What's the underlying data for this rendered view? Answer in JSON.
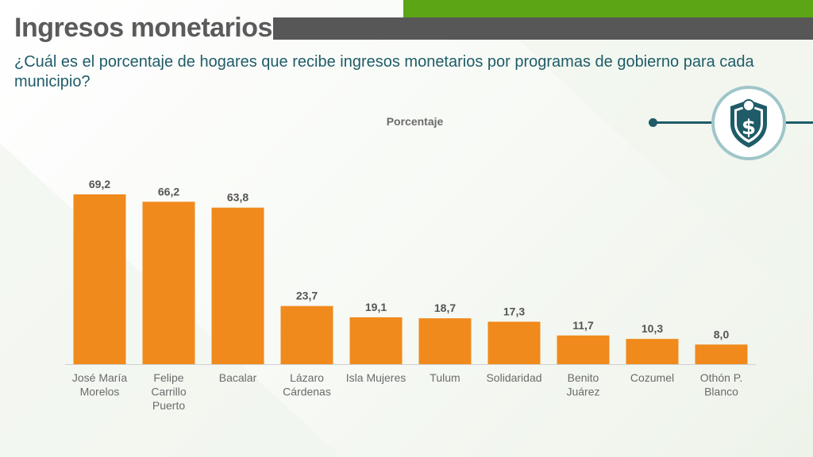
{
  "header": {
    "title": "Ingresos monetarios",
    "subtitle": "¿Cuál es el porcentaje de hogares que recibe ingresos monetarios por programas de gobierno para cada municipio?"
  },
  "badge": {
    "icon": "dollar-shield-icon",
    "color": "#1f5c68"
  },
  "colors": {
    "bar": "#f08a1c",
    "accent_green": "#5ca514",
    "header_gray": "#575757",
    "text_teal": "#1f5c68"
  },
  "chart_data": {
    "type": "bar",
    "title": "Porcentaje",
    "categories": [
      [
        "José María",
        "Morelos"
      ],
      [
        "Felipe",
        "Carrillo",
        "Puerto"
      ],
      [
        "Bacalar"
      ],
      [
        "Lázaro",
        "Cárdenas"
      ],
      [
        "Isla Mujeres"
      ],
      [
        "Tulum"
      ],
      [
        "Solidaridad"
      ],
      [
        "Benito",
        "Juárez"
      ],
      [
        "Cozumel"
      ],
      [
        "Othón P.",
        "Blanco"
      ]
    ],
    "values": [
      69.2,
      66.2,
      63.8,
      23.7,
      19.1,
      18.7,
      17.3,
      11.7,
      10.3,
      8.0
    ],
    "value_labels": [
      "69,2",
      "66,2",
      "63,8",
      "23,7",
      "19,1",
      "18,7",
      "17,3",
      "11,7",
      "10,3",
      "8,0"
    ],
    "xlabel": "",
    "ylabel": "",
    "ylim": [
      0,
      70
    ],
    "grid": false,
    "legend": "none"
  }
}
